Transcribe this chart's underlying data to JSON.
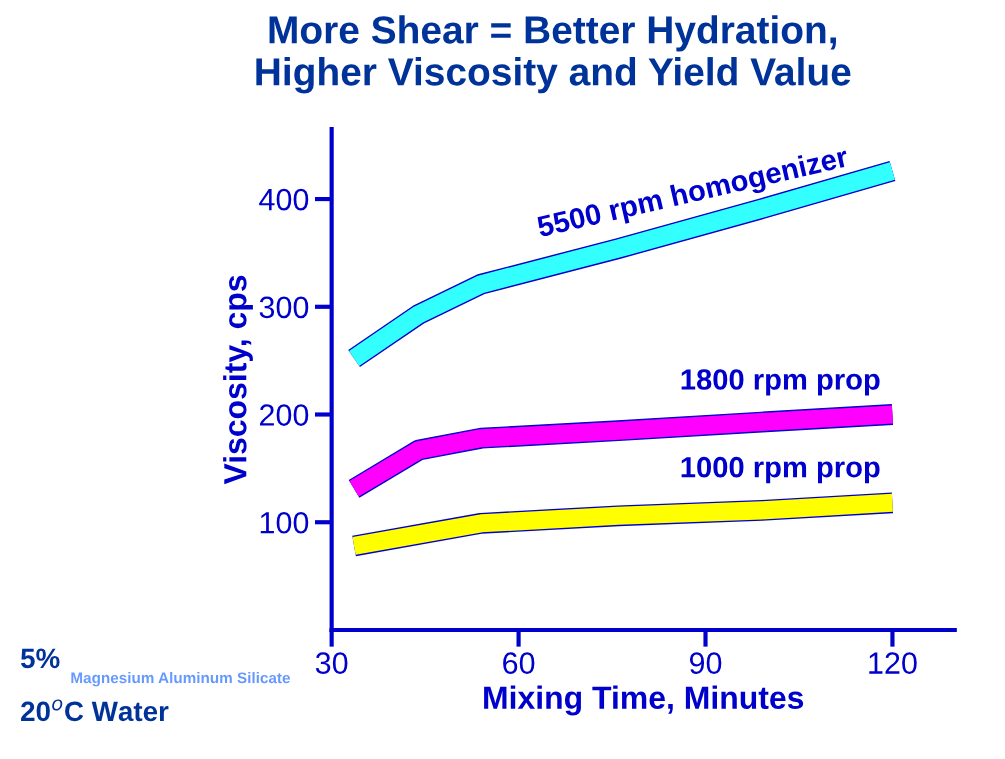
{
  "chart_data": {
    "type": "line",
    "title": "More Shear = Better Hydration,\nHigher Viscosity and Yield Value",
    "xlabel": "Mixing Time, Minutes",
    "ylabel": "Viscosity, cps",
    "xlim": [
      30,
      130
    ],
    "ylim": [
      0,
      465
    ],
    "xticks": [
      30,
      60,
      90,
      120
    ],
    "yticks": [
      100,
      200,
      300,
      400
    ],
    "grid": false,
    "legend": false,
    "marker": "none",
    "line_style": "solid",
    "series": [
      {
        "name": "5500 rpm homogenizer",
        "color": "#33ffff",
        "x": [
          33.6,
          44,
          54,
          76,
          99,
          120
        ],
        "values": [
          252,
          293,
          321,
          354,
          391,
          426
        ]
      },
      {
        "name": "1800 rpm prop",
        "color": "#ff00ff",
        "x": [
          33.6,
          44,
          54,
          76,
          99,
          120
        ],
        "values": [
          131,
          167,
          178,
          185,
          193,
          200
        ]
      },
      {
        "name": "1000 rpm prop",
        "color": "#ffff00",
        "x": [
          33.6,
          54,
          76,
          99,
          120
        ],
        "values": [
          78,
          99,
          106,
          111,
          118
        ]
      }
    ],
    "annotations": [
      "5%",
      "Magnesium Aluminum Silicate",
      "20$^{o}$C Water"
    ]
  }
}
